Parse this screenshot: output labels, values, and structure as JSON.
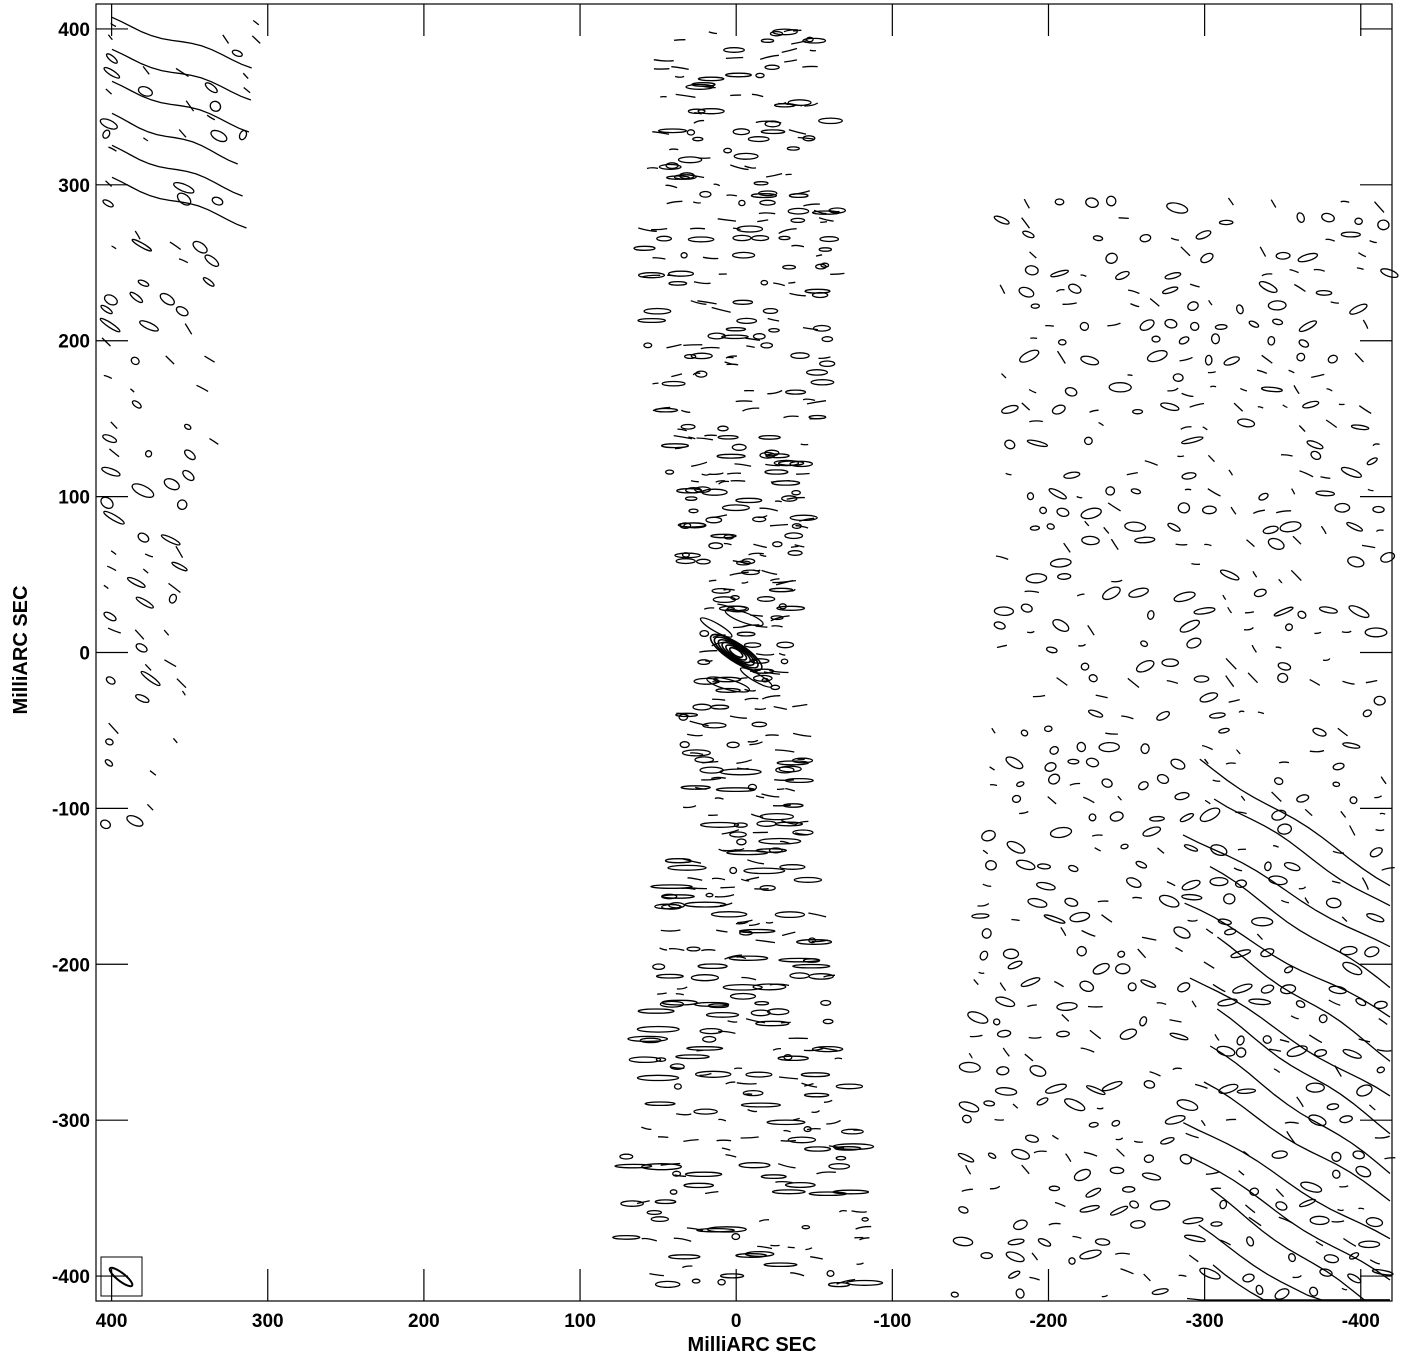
{
  "chart_data": {
    "type": "contour",
    "xlabel": "MilliARC SEC",
    "ylabel": "MilliARC SEC",
    "xlim": [
      410,
      -420
    ],
    "ylim": [
      -416,
      416
    ],
    "x_ticks": [
      400,
      300,
      200,
      100,
      0,
      -100,
      -200,
      -300,
      -400
    ],
    "y_ticks": [
      400,
      300,
      200,
      100,
      0,
      -100,
      -200,
      -300,
      -400
    ],
    "x_tick_labels": [
      "400",
      "300",
      "200",
      "100",
      "0",
      "-100",
      "-200",
      "-300",
      "-400"
    ],
    "y_tick_labels": [
      "400",
      "300",
      "200",
      "100",
      "0",
      "-100",
      "-200",
      "-300",
      "-400"
    ],
    "grid": false,
    "line_color": "#000000",
    "peak": {
      "x": 0,
      "y": 0
    },
    "beam": {
      "x": 390,
      "y": -398
    }
  }
}
